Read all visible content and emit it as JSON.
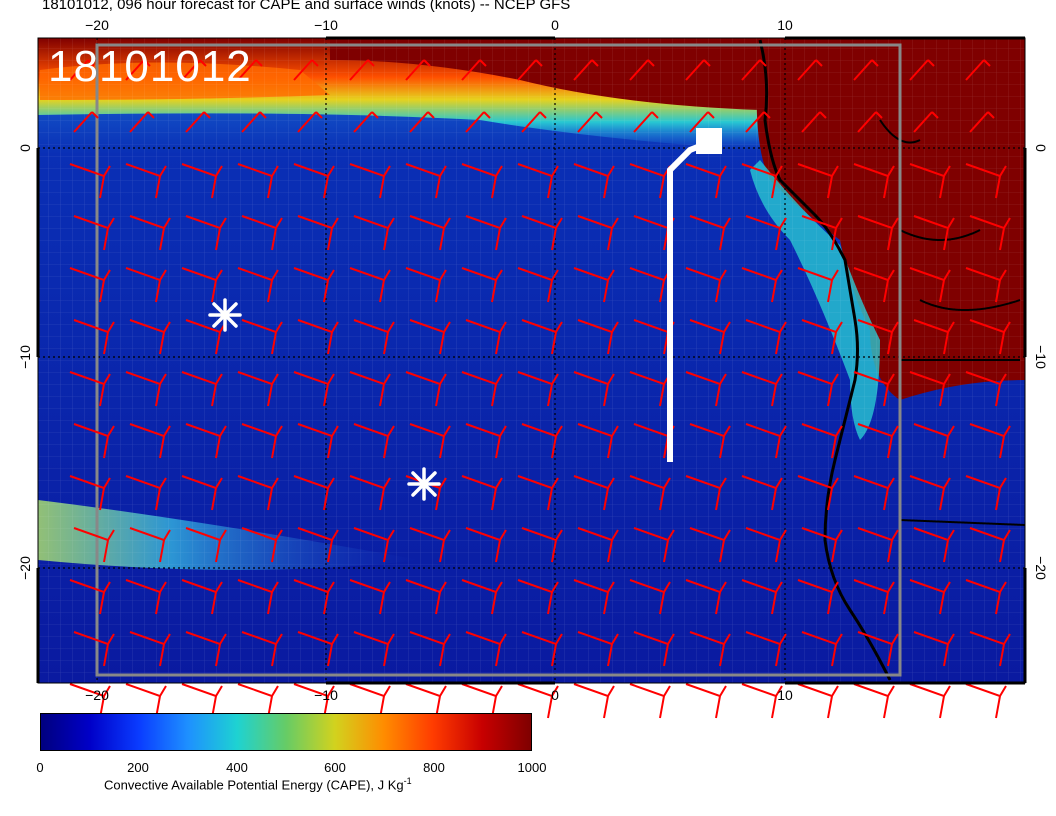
{
  "title": "18101012, 096 hour forecast for CAPE and surface winds (knots) -- NCEP GFS",
  "stamp": "18101012",
  "axes": {
    "x_ticks": [
      "−20",
      "−10",
      "0",
      "10"
    ],
    "y_ticks": [
      "0",
      "−10",
      "−20"
    ]
  },
  "colorbar": {
    "ticks": [
      "0",
      "200",
      "400",
      "600",
      "800",
      "1000"
    ],
    "label": "Convective Available Potential Energy (CAPE), J Kg",
    "label_sup": "-1"
  },
  "colors": {
    "ocean_low_cape": "#0a1a9a",
    "high_cape": "#7f0000",
    "wind_barbs": "#ff0000",
    "coastline": "#000000",
    "track": "#ffffff"
  },
  "markers": {
    "icon": "asterisk-icon",
    "count": 2
  }
}
